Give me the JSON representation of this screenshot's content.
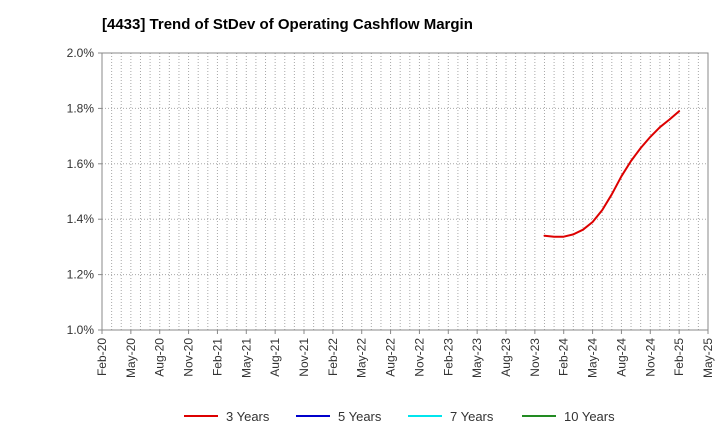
{
  "chart_data": {
    "type": "line",
    "title": "[4433]  Trend of StDev of Operating Cashflow Margin",
    "xlabel": "",
    "ylabel": "",
    "x_tick_labels": [
      "Feb-20",
      "May-20",
      "Aug-20",
      "Nov-20",
      "Feb-21",
      "May-21",
      "Aug-21",
      "Nov-21",
      "Feb-22",
      "May-22",
      "Aug-22",
      "Nov-22",
      "Feb-23",
      "May-23",
      "Aug-23",
      "Nov-23",
      "Feb-24",
      "May-24",
      "Aug-24",
      "Nov-24",
      "Feb-25",
      "May-25"
    ],
    "x_range": [
      "2020-02",
      "2025-05"
    ],
    "y_tick_labels": [
      "1.0%",
      "1.2%",
      "1.4%",
      "1.6%",
      "1.8%",
      "2.0%"
    ],
    "ylim": [
      1.0,
      2.0
    ],
    "y_unit": "%",
    "grid": true,
    "legend_position": "bottom",
    "series": [
      {
        "name": "3 Years",
        "color": "#dd0000",
        "points": [
          {
            "x": "2023-12",
            "y": 1.34
          },
          {
            "x": "2024-01",
            "y": 1.337
          },
          {
            "x": "2024-02",
            "y": 1.337
          },
          {
            "x": "2024-03",
            "y": 1.345
          },
          {
            "x": "2024-04",
            "y": 1.362
          },
          {
            "x": "2024-05",
            "y": 1.39
          },
          {
            "x": "2024-06",
            "y": 1.433
          },
          {
            "x": "2024-07",
            "y": 1.49
          },
          {
            "x": "2024-08",
            "y": 1.555
          },
          {
            "x": "2024-09",
            "y": 1.61
          },
          {
            "x": "2024-10",
            "y": 1.657
          },
          {
            "x": "2024-11",
            "y": 1.697
          },
          {
            "x": "2024-12",
            "y": 1.732
          },
          {
            "x": "2025-01",
            "y": 1.76
          },
          {
            "x": "2025-02",
            "y": 1.79
          }
        ]
      },
      {
        "name": "5 Years",
        "color": "#0000cc",
        "points": []
      },
      {
        "name": "7 Years",
        "color": "#00e5ee",
        "points": []
      },
      {
        "name": "10 Years",
        "color": "#228b22",
        "points": []
      }
    ]
  }
}
